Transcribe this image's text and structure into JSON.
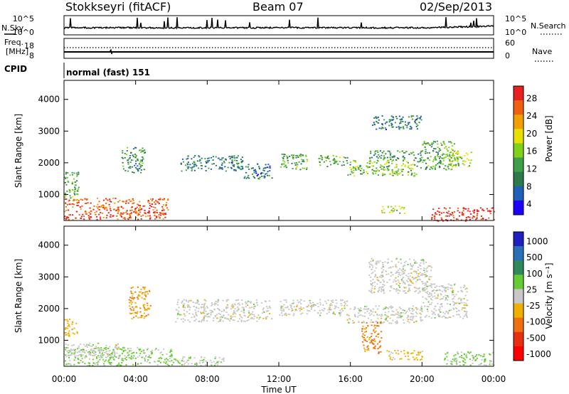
{
  "header": {
    "station": "Stokkseyri (fitACF)",
    "beam": "Beam 07",
    "date": "02/Sep/2013"
  },
  "side_labels": {
    "nsky": "N.Sky",
    "nsearch": "N.Search",
    "freq_top": "Freq.",
    "freq_unit": "[MHz]",
    "nave": "Nave",
    "cpid": "CPID"
  },
  "cpid_text": "normal (fast) 151",
  "strip_ticks": {
    "noise_left": [
      "10^5",
      "10^0"
    ],
    "noise_right": [
      "10^5",
      "10^0"
    ],
    "freq_left": [
      "18",
      "8"
    ],
    "nave_right": [
      "60",
      "0"
    ]
  },
  "colors": {
    "power": [
      "#1e00ff",
      "#2060b8",
      "#2f7a4a",
      "#3fa04a",
      "#7fd11a",
      "#e8e000",
      "#f0a000",
      "#f06010",
      "#e82020"
    ],
    "velocity": [
      "#2020c0",
      "#2a70b8",
      "#2f8a5a",
      "#66cc33",
      "#c8c8c8",
      "#f0b000",
      "#f07010",
      "#e83010",
      "#ff0000"
    ]
  },
  "chart_data": [
    {
      "type": "heatmap",
      "name": "power",
      "xlabel": "",
      "ylabel": "Slant Range [km]",
      "x_ticks": [
        "00:00",
        "04:00",
        "08:00",
        "12:00",
        "16:00",
        "20:00",
        "00:00"
      ],
      "xlim": [
        0,
        24
      ],
      "ylim": [
        180,
        4600
      ],
      "y_ticks": [
        1000,
        2000,
        3000,
        4000
      ],
      "colorbar": {
        "label": "Power [dB]",
        "ticks": [
          28,
          24,
          20,
          16,
          12,
          8,
          4
        ],
        "range": [
          0,
          30
        ]
      },
      "regions": [
        {
          "t": [
            0.0,
            5.8
          ],
          "r": [
            220,
            900
          ],
          "value": 26
        },
        {
          "t": [
            0.0,
            0.8
          ],
          "r": [
            900,
            1750
          ],
          "value": 12
        },
        {
          "t": [
            3.2,
            4.5
          ],
          "r": [
            1700,
            2500
          ],
          "value": 10
        },
        {
          "t": [
            6.5,
            10.0
          ],
          "r": [
            1750,
            2250
          ],
          "value": 8
        },
        {
          "t": [
            10.0,
            11.6
          ],
          "r": [
            1500,
            2000
          ],
          "value": 8
        },
        {
          "t": [
            12.0,
            13.6
          ],
          "r": [
            1800,
            2300
          ],
          "value": 12
        },
        {
          "t": [
            14.2,
            15.8
          ],
          "r": [
            1900,
            2250
          ],
          "value": 12
        },
        {
          "t": [
            15.8,
            19.8
          ],
          "r": [
            1600,
            2100
          ],
          "value": 14
        },
        {
          "t": [
            17.0,
            20.0
          ],
          "r": [
            2100,
            2400
          ],
          "value": 10
        },
        {
          "t": [
            17.2,
            20.0
          ],
          "r": [
            3050,
            3500
          ],
          "value": 8
        },
        {
          "t": [
            19.8,
            21.8
          ],
          "r": [
            1800,
            2700
          ],
          "value": 12
        },
        {
          "t": [
            21.4,
            22.8
          ],
          "r": [
            1900,
            2400
          ],
          "value": 16
        },
        {
          "t": [
            20.5,
            24.0
          ],
          "r": [
            180,
            600
          ],
          "value": 28
        },
        {
          "t": [
            17.6,
            19.0
          ],
          "r": [
            420,
            650
          ],
          "value": 16
        }
      ]
    },
    {
      "type": "heatmap",
      "name": "velocity",
      "xlabel": "Time UT",
      "ylabel": "Slant Range [km]",
      "x_ticks": [
        "00:00",
        "04:00",
        "08:00",
        "12:00",
        "16:00",
        "20:00",
        "00:00"
      ],
      "xlim": [
        0,
        24
      ],
      "ylim": [
        180,
        4600
      ],
      "y_ticks": [
        1000,
        2000,
        3000,
        4000
      ],
      "colorbar": {
        "label": "Velocity [m s⁻¹]",
        "ticks": [
          "1000",
          "500",
          "100",
          "25",
          "-25",
          "-100",
          "-500",
          "-1000"
        ],
        "range": [
          -1000,
          1000
        ]
      },
      "regions": [
        {
          "t": [
            0.0,
            6.0
          ],
          "r": [
            220,
            800
          ],
          "value": 150
        },
        {
          "t": [
            0.0,
            3.0
          ],
          "r": [
            500,
            950
          ],
          "value": 0
        },
        {
          "t": [
            3.6,
            4.8
          ],
          "r": [
            1700,
            2700
          ],
          "value": -300
        },
        {
          "t": [
            0.0,
            0.7
          ],
          "r": [
            1100,
            1750
          ],
          "value": -200
        },
        {
          "t": [
            6.2,
            11.6
          ],
          "r": [
            1600,
            2300
          ],
          "value": 0
        },
        {
          "t": [
            12.0,
            15.8
          ],
          "r": [
            1800,
            2300
          ],
          "value": 0
        },
        {
          "t": [
            15.8,
            20.0
          ],
          "r": [
            1550,
            2100
          ],
          "value": 0
        },
        {
          "t": [
            17.0,
            20.5
          ],
          "r": [
            2500,
            3600
          ],
          "value": 0
        },
        {
          "t": [
            20.0,
            22.5
          ],
          "r": [
            1700,
            2800
          ],
          "value": 0
        },
        {
          "t": [
            16.6,
            17.7
          ],
          "r": [
            600,
            1600
          ],
          "value": -400
        },
        {
          "t": [
            18.0,
            20.0
          ],
          "r": [
            400,
            700
          ],
          "value": -200
        },
        {
          "t": [
            21.2,
            24.0
          ],
          "r": [
            220,
            650
          ],
          "value": 150
        },
        {
          "t": [
            6.0,
            9.0
          ],
          "r": [
            220,
            500
          ],
          "value": 80
        }
      ]
    }
  ]
}
